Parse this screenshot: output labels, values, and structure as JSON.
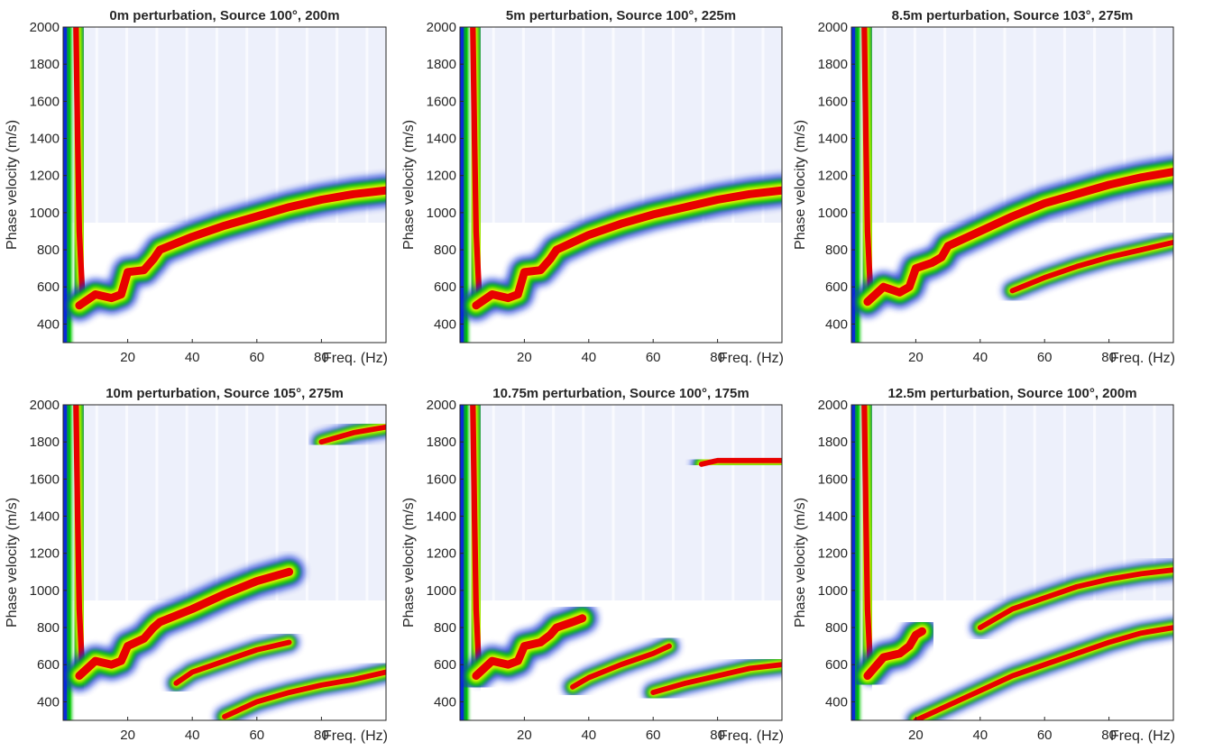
{
  "colors": {
    "background": "#ffffff",
    "colormap": [
      "#ffffff",
      "#0a2ad8",
      "#00c800",
      "#f4f400",
      "#e80000"
    ],
    "axis": "#262626"
  },
  "chart_data": [
    {
      "type": "heatmap",
      "title": "0m perturbation, Source 100°, 200m",
      "xlabel": "Freq. (Hz)",
      "ylabel": "Phase velocity (m/s)",
      "xlim": [
        0,
        100
      ],
      "ylim": [
        300,
        2000
      ],
      "xticks": [
        "20",
        "40",
        "60",
        "80"
      ],
      "yticks": [
        "400",
        "600",
        "800",
        "1000",
        "1200",
        "1400",
        "1600",
        "1800",
        "2000"
      ],
      "grid": false,
      "fundamental_mode": {
        "x": [
          5,
          10,
          15,
          18,
          20,
          25,
          28,
          30,
          40,
          50,
          60,
          70,
          80,
          90,
          100
        ],
        "y": [
          500,
          560,
          540,
          560,
          680,
          690,
          750,
          800,
          870,
          930,
          980,
          1030,
          1070,
          1100,
          1120
        ]
      },
      "higher_modes": []
    },
    {
      "type": "heatmap",
      "title": "5m perturbation, Source 100°, 225m",
      "xlabel": "Freq. (Hz)",
      "ylabel": "Phase velocity (m/s)",
      "xlim": [
        0,
        100
      ],
      "ylim": [
        300,
        2000
      ],
      "xticks": [
        "20",
        "40",
        "60",
        "80"
      ],
      "yticks": [
        "400",
        "600",
        "800",
        "1000",
        "1200",
        "1400",
        "1600",
        "1800",
        "2000"
      ],
      "grid": false,
      "fundamental_mode": {
        "x": [
          5,
          10,
          15,
          18,
          20,
          25,
          28,
          30,
          40,
          50,
          60,
          70,
          80,
          90,
          100
        ],
        "y": [
          500,
          560,
          540,
          560,
          680,
          690,
          750,
          800,
          880,
          940,
          990,
          1030,
          1070,
          1100,
          1120
        ]
      },
      "higher_modes": []
    },
    {
      "type": "heatmap",
      "title": "8.5m perturbation, Source 103°, 275m",
      "xlabel": "Freq. (Hz)",
      "ylabel": "Phase velocity (m/s)",
      "xlim": [
        0,
        100
      ],
      "ylim": [
        300,
        2000
      ],
      "xticks": [
        "20",
        "40",
        "60",
        "80"
      ],
      "yticks": [
        "400",
        "600",
        "800",
        "1000",
        "1200",
        "1400",
        "1600",
        "1800",
        "2000"
      ],
      "grid": false,
      "fundamental_mode": {
        "x": [
          5,
          10,
          15,
          18,
          20,
          25,
          28,
          30,
          40,
          50,
          60,
          70,
          80,
          90,
          100
        ],
        "y": [
          520,
          600,
          570,
          600,
          700,
          730,
          760,
          820,
          900,
          980,
          1050,
          1100,
          1150,
          1190,
          1220
        ]
      },
      "higher_modes": [
        {
          "x": [
            50,
            60,
            70,
            80,
            90,
            100
          ],
          "y": [
            580,
            650,
            710,
            760,
            800,
            840
          ]
        }
      ]
    },
    {
      "type": "heatmap",
      "title": "10m perturbation, Source 105°, 275m",
      "xlabel": "Freq. (Hz)",
      "ylabel": "Phase velocity (m/s)",
      "xlim": [
        0,
        100
      ],
      "ylim": [
        300,
        2000
      ],
      "xticks": [
        "20",
        "40",
        "60",
        "80"
      ],
      "yticks": [
        "400",
        "600",
        "800",
        "1000",
        "1200",
        "1400",
        "1600",
        "1800",
        "2000"
      ],
      "grid": false,
      "fundamental_mode": {
        "x": [
          5,
          10,
          15,
          18,
          20,
          25,
          28,
          30,
          40,
          50,
          60,
          70
        ],
        "y": [
          540,
          620,
          600,
          620,
          700,
          740,
          800,
          830,
          900,
          980,
          1050,
          1100
        ]
      },
      "higher_modes": [
        {
          "x": [
            35,
            40,
            50,
            60,
            70
          ],
          "y": [
            500,
            560,
            620,
            680,
            720
          ]
        },
        {
          "x": [
            50,
            60,
            70,
            80,
            90,
            100
          ],
          "y": [
            320,
            400,
            450,
            490,
            520,
            560
          ]
        },
        {
          "x": [
            80,
            90,
            100
          ],
          "y": [
            1800,
            1850,
            1880
          ]
        }
      ]
    },
    {
      "type": "heatmap",
      "title": "10.75m perturbation, Source 100°, 175m",
      "xlabel": "Freq. (Hz)",
      "ylabel": "Phase velocity (m/s)",
      "xlim": [
        0,
        100
      ],
      "ylim": [
        300,
        2000
      ],
      "xticks": [
        "20",
        "40",
        "60",
        "80"
      ],
      "yticks": [
        "400",
        "600",
        "800",
        "1000",
        "1200",
        "1400",
        "1600",
        "1800",
        "2000"
      ],
      "grid": false,
      "fundamental_mode": {
        "x": [
          5,
          10,
          15,
          18,
          20,
          25,
          28,
          30,
          35,
          38
        ],
        "y": [
          540,
          620,
          600,
          620,
          700,
          720,
          760,
          800,
          830,
          850
        ]
      },
      "higher_modes": [
        {
          "x": [
            35,
            40,
            50,
            60,
            65
          ],
          "y": [
            480,
            530,
            600,
            660,
            700
          ]
        },
        {
          "x": [
            60,
            70,
            80,
            90,
            100
          ],
          "y": [
            450,
            500,
            540,
            580,
            600
          ]
        },
        {
          "x": [
            75,
            80,
            90,
            100
          ],
          "y": [
            1680,
            1700,
            1700,
            1700
          ]
        }
      ]
    },
    {
      "type": "heatmap",
      "title": "12.5m perturbation, Source 100°, 200m",
      "xlabel": "Freq. (Hz)",
      "ylabel": "Phase velocity (m/s)",
      "xlim": [
        0,
        100
      ],
      "ylim": [
        300,
        2000
      ],
      "xticks": [
        "20",
        "40",
        "60",
        "80"
      ],
      "yticks": [
        "400",
        "600",
        "800",
        "1000",
        "1200",
        "1400",
        "1600",
        "1800",
        "2000"
      ],
      "grid": false,
      "fundamental_mode": {
        "x": [
          5,
          10,
          15,
          18,
          20,
          22
        ],
        "y": [
          540,
          640,
          660,
          700,
          760,
          780
        ]
      },
      "higher_modes": [
        {
          "x": [
            20,
            30,
            40,
            50,
            60,
            70,
            80,
            90,
            100
          ],
          "y": [
            300,
            380,
            460,
            540,
            600,
            660,
            720,
            770,
            800
          ]
        },
        {
          "x": [
            40,
            50,
            60,
            70,
            80,
            90,
            100
          ],
          "y": [
            800,
            900,
            960,
            1020,
            1060,
            1090,
            1110
          ]
        }
      ]
    }
  ]
}
